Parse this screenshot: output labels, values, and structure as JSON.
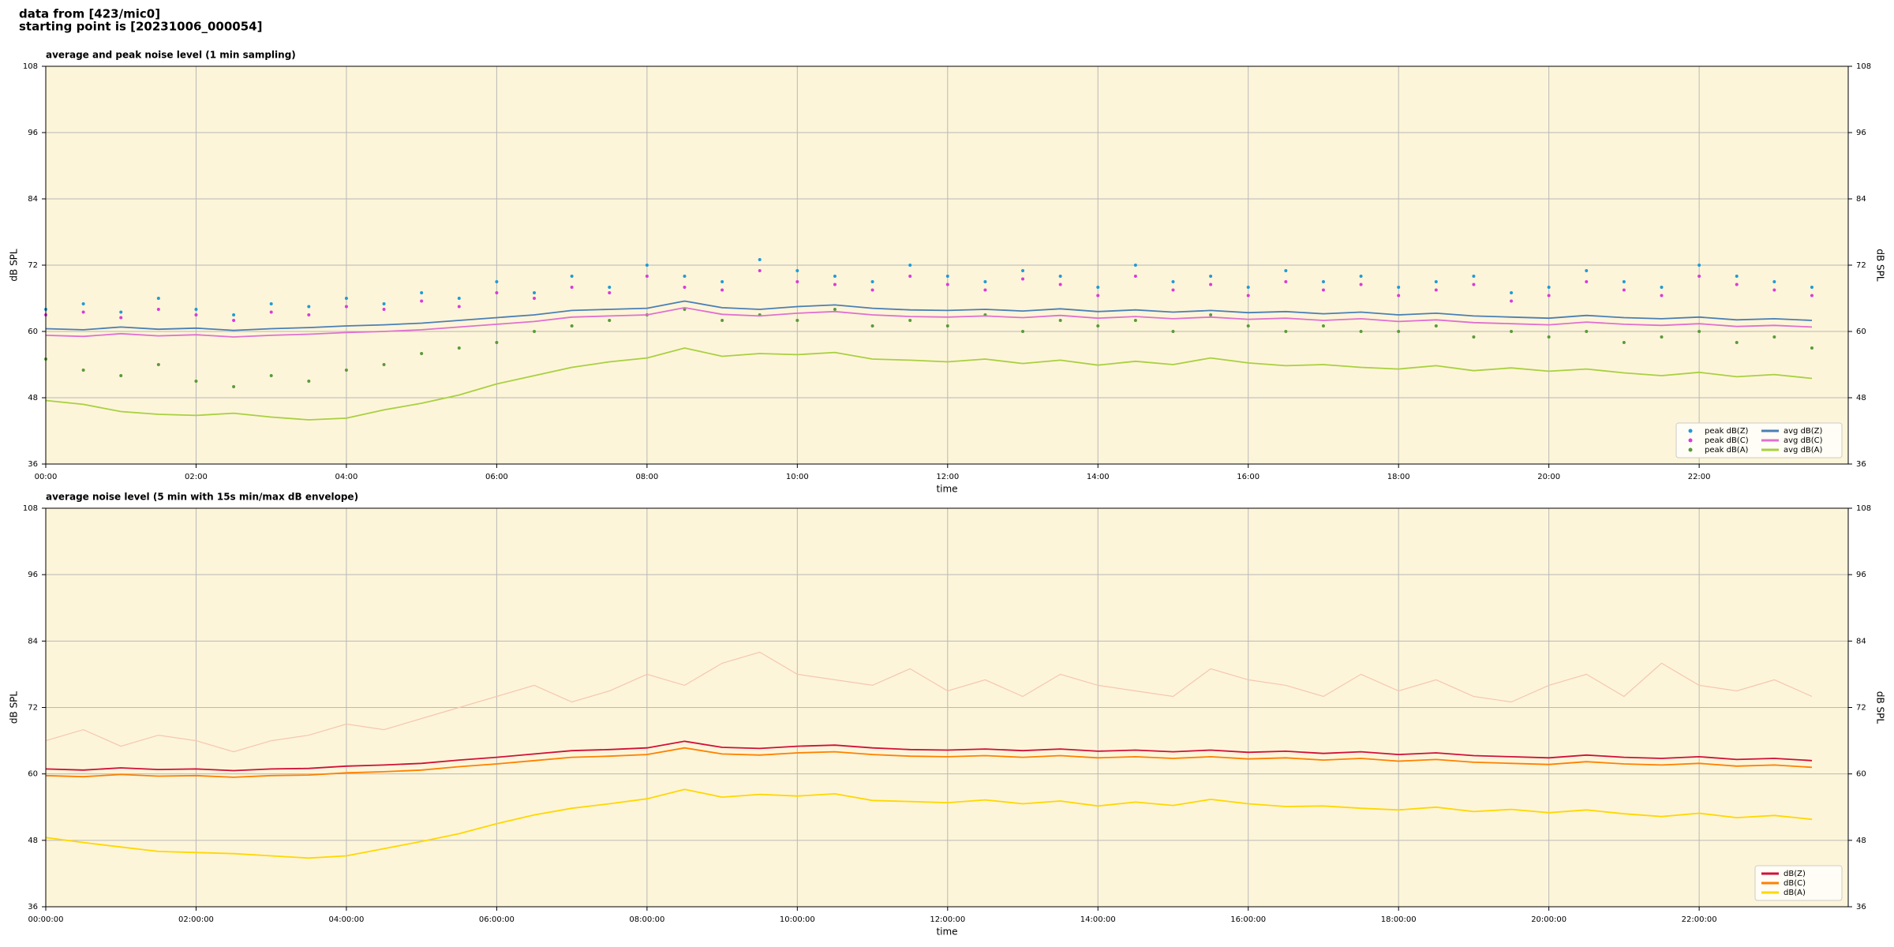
{
  "header": {
    "line1": "data from [423/mic0]",
    "line2": "starting point is [20231006_000054]"
  },
  "chart_data": [
    {
      "type": "line",
      "title": "average and peak noise level (1 min sampling)",
      "xlabel": "time",
      "ylabel": "dB SPL",
      "xlim": [
        "00:00",
        "23:59"
      ],
      "xticks": [
        "00:00",
        "02:00",
        "04:00",
        "06:00",
        "08:00",
        "10:00",
        "12:00",
        "14:00",
        "16:00",
        "18:00",
        "20:00",
        "22:00"
      ],
      "ylim": [
        36,
        108
      ],
      "yticks": [
        36,
        48,
        60,
        72,
        84,
        96,
        108
      ],
      "grid": true,
      "legend": "lower right",
      "legend_columns": 2,
      "x": [
        "00:00",
        "00:30",
        "01:00",
        "01:30",
        "02:00",
        "02:30",
        "03:00",
        "03:30",
        "04:00",
        "04:30",
        "05:00",
        "05:30",
        "06:00",
        "06:30",
        "07:00",
        "07:30",
        "08:00",
        "08:30",
        "09:00",
        "09:30",
        "10:00",
        "10:30",
        "11:00",
        "11:30",
        "12:00",
        "12:30",
        "13:00",
        "13:30",
        "14:00",
        "14:30",
        "15:00",
        "15:30",
        "16:00",
        "16:30",
        "17:00",
        "17:30",
        "18:00",
        "18:30",
        "19:00",
        "19:30",
        "20:00",
        "20:30",
        "21:00",
        "21:30",
        "22:00",
        "22:30",
        "23:00",
        "23:30"
      ],
      "series": [
        {
          "name": "peak dB(Z)",
          "type": "scatter",
          "color": "#1f9bd6",
          "values": [
            64,
            65,
            63.5,
            66,
            64,
            63,
            65,
            64.5,
            66,
            65,
            67,
            66,
            69,
            67,
            70,
            68,
            72,
            70,
            69,
            73,
            71,
            70,
            69,
            72,
            70,
            69,
            71,
            70,
            68,
            72,
            69,
            70,
            68,
            71,
            69,
            70,
            68,
            69,
            70,
            67,
            68,
            71,
            69,
            68,
            72,
            70,
            69,
            68
          ]
        },
        {
          "name": "peak dB(C)",
          "type": "scatter",
          "color": "#d83cd8",
          "values": [
            63,
            63.5,
            62.5,
            64,
            63,
            62,
            63.5,
            63,
            64.5,
            64,
            65.5,
            64.5,
            67,
            66,
            68,
            67,
            70,
            68,
            67.5,
            71,
            69,
            68.5,
            67.5,
            70,
            68.5,
            67.5,
            69.5,
            68.5,
            66.5,
            70,
            67.5,
            68.5,
            66.5,
            69,
            67.5,
            68.5,
            66.5,
            67.5,
            68.5,
            65.5,
            66.5,
            69,
            67.5,
            66.5,
            70,
            68.5,
            67.5,
            66.5
          ]
        },
        {
          "name": "peak dB(A)",
          "type": "scatter",
          "color": "#5a9a3a",
          "values": [
            55,
            53,
            52,
            54,
            51,
            50,
            52,
            51,
            53,
            54,
            56,
            57,
            58,
            60,
            61,
            62,
            63,
            64,
            62,
            63,
            62,
            64,
            61,
            62,
            61,
            63,
            60,
            62,
            61,
            62,
            60,
            63,
            61,
            60,
            61,
            60,
            60,
            61,
            59,
            60,
            59,
            60,
            58,
            59,
            60,
            58,
            59,
            57
          ]
        },
        {
          "name": "avg dB(Z)",
          "type": "line",
          "color": "#4a7fb5",
          "values": [
            60.5,
            60.3,
            60.8,
            60.4,
            60.6,
            60.2,
            60.5,
            60.7,
            61.0,
            61.2,
            61.5,
            62.0,
            62.5,
            63.0,
            63.8,
            64.0,
            64.2,
            65.5,
            64.3,
            64.0,
            64.5,
            64.8,
            64.2,
            63.9,
            63.8,
            64.0,
            63.7,
            64.1,
            63.6,
            63.9,
            63.5,
            63.8,
            63.4,
            63.6,
            63.2,
            63.5,
            63.0,
            63.3,
            62.8,
            62.6,
            62.4,
            62.9,
            62.5,
            62.3,
            62.6,
            62.1,
            62.3,
            62.0
          ]
        },
        {
          "name": "avg dB(C)",
          "type": "line",
          "color": "#e070d0",
          "values": [
            59.3,
            59.1,
            59.6,
            59.2,
            59.4,
            59.0,
            59.3,
            59.5,
            59.8,
            60.0,
            60.3,
            60.8,
            61.3,
            61.8,
            62.6,
            62.8,
            63.0,
            64.3,
            63.1,
            62.8,
            63.3,
            63.6,
            63.0,
            62.7,
            62.6,
            62.8,
            62.5,
            62.9,
            62.4,
            62.7,
            62.3,
            62.6,
            62.2,
            62.4,
            62.0,
            62.3,
            61.8,
            62.1,
            61.6,
            61.4,
            61.2,
            61.7,
            61.3,
            61.1,
            61.4,
            60.9,
            61.1,
            60.8
          ]
        },
        {
          "name": "avg dB(A)",
          "type": "line",
          "color": "#a8d040",
          "values": [
            47.5,
            46.8,
            45.5,
            45.0,
            44.8,
            45.2,
            44.5,
            44.0,
            44.3,
            45.8,
            47.0,
            48.5,
            50.5,
            52.0,
            53.5,
            54.5,
            55.2,
            57.0,
            55.5,
            56.0,
            55.8,
            56.2,
            55.0,
            54.8,
            54.5,
            55.0,
            54.2,
            54.8,
            53.9,
            54.6,
            54.0,
            55.2,
            54.3,
            53.8,
            54.0,
            53.5,
            53.2,
            53.8,
            52.9,
            53.4,
            52.8,
            53.2,
            52.5,
            52.0,
            52.6,
            51.8,
            52.2,
            51.5
          ]
        }
      ]
    },
    {
      "type": "line",
      "title": "average noise level (5 min with 15s min/max dB envelope)",
      "xlabel": "time",
      "ylabel": "dB SPL",
      "xlim": [
        "00:00:00",
        "23:59:00"
      ],
      "xticks": [
        "00:00:00",
        "02:00:00",
        "04:00:00",
        "06:00:00",
        "08:00:00",
        "10:00:00",
        "12:00:00",
        "14:00:00",
        "16:00:00",
        "18:00:00",
        "20:00:00",
        "22:00:00"
      ],
      "ylim": [
        36,
        108
      ],
      "yticks": [
        36,
        48,
        60,
        72,
        84,
        96,
        108
      ],
      "grid": true,
      "legend": "lower right",
      "legend_columns": 1,
      "x": [
        "00:00:00",
        "00:30:00",
        "01:00:00",
        "01:30:00",
        "02:00:00",
        "02:30:00",
        "03:00:00",
        "03:30:00",
        "04:00:00",
        "04:30:00",
        "05:00:00",
        "05:30:00",
        "06:00:00",
        "06:30:00",
        "07:00:00",
        "07:30:00",
        "08:00:00",
        "08:30:00",
        "09:00:00",
        "09:30:00",
        "10:00:00",
        "10:30:00",
        "11:00:00",
        "11:30:00",
        "12:00:00",
        "12:30:00",
        "13:00:00",
        "13:30:00",
        "14:00:00",
        "14:30:00",
        "15:00:00",
        "15:30:00",
        "16:00:00",
        "16:30:00",
        "17:00:00",
        "17:30:00",
        "18:00:00",
        "18:30:00",
        "19:00:00",
        "19:30:00",
        "20:00:00",
        "20:30:00",
        "21:00:00",
        "21:30:00",
        "22:00:00",
        "22:30:00",
        "23:00:00",
        "23:30:00"
      ],
      "series": [
        {
          "color": "#f5c6b0",
          "values": [
            66,
            68,
            65,
            67,
            66,
            64,
            66,
            67,
            69,
            68,
            70,
            72,
            74,
            76,
            73,
            75,
            78,
            76,
            80,
            82,
            78,
            77,
            76,
            79,
            75,
            77,
            74,
            78,
            76,
            75,
            74,
            79,
            77,
            76,
            74,
            78,
            75,
            77,
            74,
            73,
            76,
            78,
            74,
            80,
            76,
            75,
            77,
            74
          ]
        },
        {
          "name": "dB(Z)",
          "type": "line",
          "color": "#d0103a",
          "values": [
            60.9,
            60.7,
            61.1,
            60.8,
            60.9,
            60.6,
            60.9,
            61.0,
            61.4,
            61.6,
            61.9,
            62.5,
            63.0,
            63.6,
            64.2,
            64.4,
            64.7,
            65.9,
            64.8,
            64.6,
            65.0,
            65.2,
            64.7,
            64.4,
            64.3,
            64.5,
            64.2,
            64.5,
            64.1,
            64.3,
            64.0,
            64.3,
            63.9,
            64.1,
            63.7,
            64.0,
            63.5,
            63.8,
            63.3,
            63.1,
            62.9,
            63.4,
            63.0,
            62.8,
            63.1,
            62.6,
            62.8,
            62.4
          ]
        },
        {
          "name": "dB(C)",
          "type": "line",
          "color": "#ff8000",
          "values": [
            59.7,
            59.5,
            59.9,
            59.6,
            59.7,
            59.4,
            59.7,
            59.8,
            60.2,
            60.4,
            60.7,
            61.3,
            61.8,
            62.4,
            63.0,
            63.2,
            63.5,
            64.7,
            63.6,
            63.4,
            63.8,
            64.0,
            63.5,
            63.2,
            63.1,
            63.3,
            63.0,
            63.3,
            62.9,
            63.1,
            62.8,
            63.1,
            62.7,
            62.9,
            62.5,
            62.8,
            62.3,
            62.6,
            62.1,
            61.9,
            61.7,
            62.2,
            61.8,
            61.6,
            61.9,
            61.4,
            61.6,
            61.2
          ]
        },
        {
          "name": "dB(A)",
          "type": "line",
          "color": "#ffd700",
          "values": [
            48.5,
            47.6,
            46.8,
            46.0,
            45.8,
            45.6,
            45.2,
            44.8,
            45.2,
            46.5,
            47.8,
            49.2,
            51.0,
            52.6,
            53.8,
            54.6,
            55.5,
            57.2,
            55.8,
            56.3,
            56.0,
            56.4,
            55.2,
            55.0,
            54.8,
            55.3,
            54.6,
            55.1,
            54.2,
            54.9,
            54.3,
            55.4,
            54.6,
            54.1,
            54.2,
            53.8,
            53.5,
            54.0,
            53.2,
            53.6,
            53.0,
            53.5,
            52.8,
            52.3,
            52.9,
            52.1,
            52.5,
            51.8
          ]
        }
      ]
    }
  ]
}
